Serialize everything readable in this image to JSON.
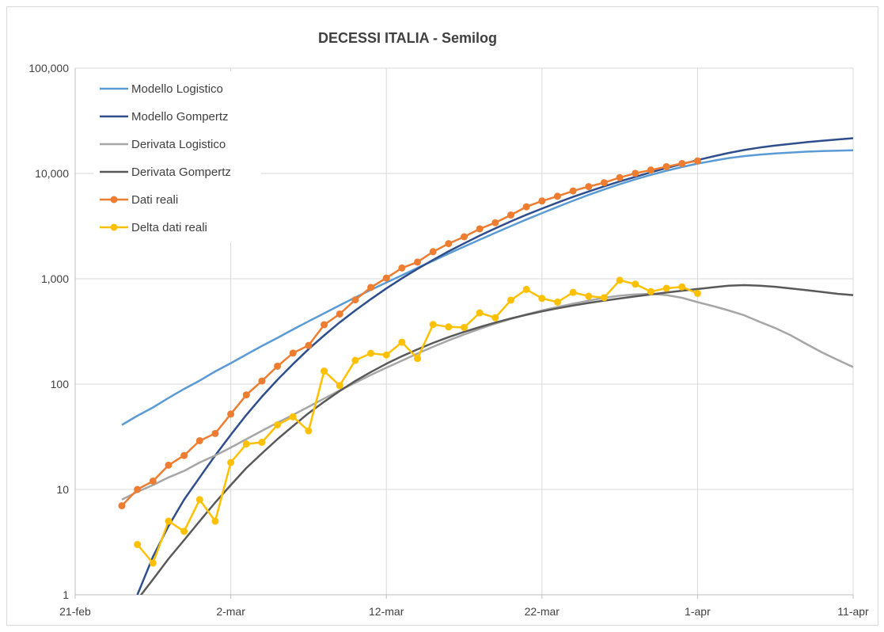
{
  "chart_data": {
    "type": "line",
    "title": "DECESSI ITALIA - Semilog",
    "xlabel": "",
    "ylabel": "",
    "yscale": "log",
    "ylim": [
      1,
      100000
    ],
    "xlim": [
      "2020-02-21",
      "2020-04-11"
    ],
    "grid": true,
    "legend_position": "top-left",
    "y_tick_labels": [
      "1",
      "10",
      "100",
      "1,000",
      "10,000",
      "100,000"
    ],
    "x_tick_labels": [
      {
        "date": "2020-02-21",
        "label": "21-feb"
      },
      {
        "date": "2020-03-02",
        "label": "2-mar"
      },
      {
        "date": "2020-03-12",
        "label": "12-mar"
      },
      {
        "date": "2020-03-22",
        "label": "22-mar"
      },
      {
        "date": "2020-04-01",
        "label": "1-apr"
      },
      {
        "date": "2020-04-11",
        "label": "11-apr"
      }
    ],
    "series": [
      {
        "name": "Modello Logistico",
        "color": "#5b9bd5",
        "marker": "none",
        "x": [
          "2020-02-24",
          "2020-02-25",
          "2020-02-26",
          "2020-02-27",
          "2020-02-28",
          "2020-02-29",
          "2020-03-01",
          "2020-03-02",
          "2020-03-03",
          "2020-03-04",
          "2020-03-05",
          "2020-03-06",
          "2020-03-07",
          "2020-03-08",
          "2020-03-09",
          "2020-03-10",
          "2020-03-11",
          "2020-03-12",
          "2020-03-13",
          "2020-03-14",
          "2020-03-15",
          "2020-03-16",
          "2020-03-17",
          "2020-03-18",
          "2020-03-19",
          "2020-03-20",
          "2020-03-21",
          "2020-03-22",
          "2020-03-23",
          "2020-03-24",
          "2020-03-25",
          "2020-03-26",
          "2020-03-27",
          "2020-03-28",
          "2020-03-29",
          "2020-03-30",
          "2020-03-31",
          "2020-04-01",
          "2020-04-02",
          "2020-04-03",
          "2020-04-04",
          "2020-04-05",
          "2020-04-06",
          "2020-04-07",
          "2020-04-08",
          "2020-04-09",
          "2020-04-10",
          "2020-04-11"
        ],
        "y": [
          41,
          50,
          60,
          74,
          90,
          108,
          132,
          158,
          191,
          230,
          275,
          330,
          395,
          470,
          560,
          665,
          785,
          920,
          1080,
          1270,
          1480,
          1730,
          2020,
          2350,
          2730,
          3160,
          3650,
          4200,
          4820,
          5500,
          6250,
          7050,
          7900,
          8800,
          9700,
          10600,
          11500,
          12400,
          13200,
          14000,
          14600,
          15100,
          15500,
          15800,
          16100,
          16300,
          16450,
          16600
        ]
      },
      {
        "name": "Modello Gompertz",
        "color": "#2f4e8c",
        "marker": "none",
        "x": [
          "2020-02-25",
          "2020-02-26",
          "2020-02-27",
          "2020-02-28",
          "2020-02-29",
          "2020-03-01",
          "2020-03-02",
          "2020-03-03",
          "2020-03-04",
          "2020-03-05",
          "2020-03-06",
          "2020-03-07",
          "2020-03-08",
          "2020-03-09",
          "2020-03-10",
          "2020-03-11",
          "2020-03-12",
          "2020-03-13",
          "2020-03-14",
          "2020-03-15",
          "2020-03-16",
          "2020-03-17",
          "2020-03-18",
          "2020-03-19",
          "2020-03-20",
          "2020-03-21",
          "2020-03-22",
          "2020-03-23",
          "2020-03-24",
          "2020-03-25",
          "2020-03-26",
          "2020-03-27",
          "2020-03-28",
          "2020-03-29",
          "2020-03-30",
          "2020-03-31",
          "2020-04-01",
          "2020-04-02",
          "2020-04-03",
          "2020-04-04",
          "2020-04-05",
          "2020-04-06",
          "2020-04-07",
          "2020-04-08",
          "2020-04-09",
          "2020-04-10",
          "2020-04-11"
        ],
        "y": [
          1,
          2.3,
          4.5,
          8,
          13,
          21,
          33,
          51,
          76,
          110,
          155,
          215,
          290,
          385,
          500,
          640,
          810,
          1010,
          1240,
          1510,
          1820,
          2170,
          2570,
          3010,
          3510,
          4050,
          4640,
          5290,
          5990,
          6740,
          7540,
          8390,
          9290,
          10240,
          11240,
          12280,
          13370,
          14500,
          15650,
          16700,
          17600,
          18400,
          19100,
          19800,
          20400,
          21000,
          21600
        ]
      },
      {
        "name": "Derivata Logistico",
        "color": "#a6a6a6",
        "marker": "none",
        "x": [
          "2020-02-24",
          "2020-02-25",
          "2020-02-26",
          "2020-02-27",
          "2020-02-28",
          "2020-02-29",
          "2020-03-01",
          "2020-03-02",
          "2020-03-03",
          "2020-03-04",
          "2020-03-05",
          "2020-03-06",
          "2020-03-07",
          "2020-03-08",
          "2020-03-09",
          "2020-03-10",
          "2020-03-11",
          "2020-03-12",
          "2020-03-13",
          "2020-03-14",
          "2020-03-15",
          "2020-03-16",
          "2020-03-17",
          "2020-03-18",
          "2020-03-19",
          "2020-03-20",
          "2020-03-21",
          "2020-03-22",
          "2020-03-23",
          "2020-03-24",
          "2020-03-25",
          "2020-03-26",
          "2020-03-27",
          "2020-03-28",
          "2020-03-29",
          "2020-03-30",
          "2020-03-31",
          "2020-04-01",
          "2020-04-02",
          "2020-04-03",
          "2020-04-04",
          "2020-04-05",
          "2020-04-06",
          "2020-04-07",
          "2020-04-08",
          "2020-04-09",
          "2020-04-10",
          "2020-04-11"
        ],
        "y": [
          8,
          9.5,
          11,
          13,
          15,
          18,
          21,
          25,
          30,
          36,
          43,
          51,
          61,
          73,
          87,
          103,
          122,
          143,
          167,
          195,
          226,
          260,
          296,
          335,
          375,
          416,
          458,
          500,
          540,
          580,
          620,
          660,
          690,
          710,
          720,
          700,
          660,
          600,
          550,
          500,
          450,
          390,
          340,
          290,
          240,
          200,
          170,
          145
        ]
      },
      {
        "name": "Derivata Gompertz",
        "color": "#595959",
        "marker": "none",
        "x": [
          "2020-02-25",
          "2020-02-26",
          "2020-02-27",
          "2020-02-28",
          "2020-02-29",
          "2020-03-01",
          "2020-03-02",
          "2020-03-03",
          "2020-03-04",
          "2020-03-05",
          "2020-03-06",
          "2020-03-07",
          "2020-03-08",
          "2020-03-09",
          "2020-03-10",
          "2020-03-11",
          "2020-03-12",
          "2020-03-13",
          "2020-03-14",
          "2020-03-15",
          "2020-03-16",
          "2020-03-17",
          "2020-03-18",
          "2020-03-19",
          "2020-03-20",
          "2020-03-21",
          "2020-03-22",
          "2020-03-23",
          "2020-03-24",
          "2020-03-25",
          "2020-03-26",
          "2020-03-27",
          "2020-03-28",
          "2020-03-29",
          "2020-03-30",
          "2020-03-31",
          "2020-04-01",
          "2020-04-02",
          "2020-04-03",
          "2020-04-04",
          "2020-04-05",
          "2020-04-06",
          "2020-04-07",
          "2020-04-08",
          "2020-04-09",
          "2020-04-10",
          "2020-04-11"
        ],
        "y": [
          0.9,
          1.4,
          2.2,
          3.3,
          5,
          7.5,
          11,
          16,
          22,
          30,
          40,
          53,
          68,
          86,
          107,
          130,
          156,
          184,
          214,
          246,
          279,
          313,
          348,
          384,
          420,
          455,
          490,
          524,
          557,
          590,
          620,
          650,
          680,
          710,
          740,
          770,
          800,
          830,
          860,
          870,
          860,
          840,
          810,
          780,
          750,
          720,
          700
        ]
      },
      {
        "name": "Dati reali",
        "color": "#ed7d31",
        "marker": "circle",
        "x": [
          "2020-02-24",
          "2020-02-25",
          "2020-02-26",
          "2020-02-27",
          "2020-02-28",
          "2020-02-29",
          "2020-03-01",
          "2020-03-02",
          "2020-03-03",
          "2020-03-04",
          "2020-03-05",
          "2020-03-06",
          "2020-03-07",
          "2020-03-08",
          "2020-03-09",
          "2020-03-10",
          "2020-03-11",
          "2020-03-12",
          "2020-03-13",
          "2020-03-14",
          "2020-03-15",
          "2020-03-16",
          "2020-03-17",
          "2020-03-18",
          "2020-03-19",
          "2020-03-20",
          "2020-03-21",
          "2020-03-22",
          "2020-03-23",
          "2020-03-24",
          "2020-03-25",
          "2020-03-26",
          "2020-03-27",
          "2020-03-28",
          "2020-03-29",
          "2020-03-30",
          "2020-03-31",
          "2020-04-01"
        ],
        "y": [
          7,
          10,
          12,
          17,
          21,
          29,
          34,
          52,
          79,
          107,
          148,
          197,
          233,
          366,
          463,
          631,
          827,
          1016,
          1266,
          1441,
          1809,
          2158,
          2503,
          2978,
          3405,
          4032,
          4825,
          5476,
          6077,
          6820,
          7503,
          8165,
          9134,
          10023,
          10779,
          11591,
          12428,
          13155
        ]
      },
      {
        "name": "Delta dati reali",
        "color": "#ffc000",
        "marker": "circle",
        "x": [
          "2020-02-25",
          "2020-02-26",
          "2020-02-27",
          "2020-02-28",
          "2020-02-29",
          "2020-03-01",
          "2020-03-02",
          "2020-03-03",
          "2020-03-04",
          "2020-03-05",
          "2020-03-06",
          "2020-03-07",
          "2020-03-08",
          "2020-03-09",
          "2020-03-10",
          "2020-03-11",
          "2020-03-12",
          "2020-03-13",
          "2020-03-14",
          "2020-03-15",
          "2020-03-16",
          "2020-03-17",
          "2020-03-18",
          "2020-03-19",
          "2020-03-20",
          "2020-03-21",
          "2020-03-22",
          "2020-03-23",
          "2020-03-24",
          "2020-03-25",
          "2020-03-26",
          "2020-03-27",
          "2020-03-28",
          "2020-03-29",
          "2020-03-30",
          "2020-03-31",
          "2020-04-01"
        ],
        "y": [
          3,
          2,
          5,
          4,
          8,
          5,
          18,
          27,
          28,
          41,
          49,
          36,
          133,
          97,
          168,
          196,
          189,
          250,
          175,
          368,
          349,
          345,
          475,
          427,
          627,
          793,
          651,
          601,
          743,
          683,
          662,
          969,
          889,
          756,
          812,
          837,
          727
        ]
      }
    ]
  }
}
